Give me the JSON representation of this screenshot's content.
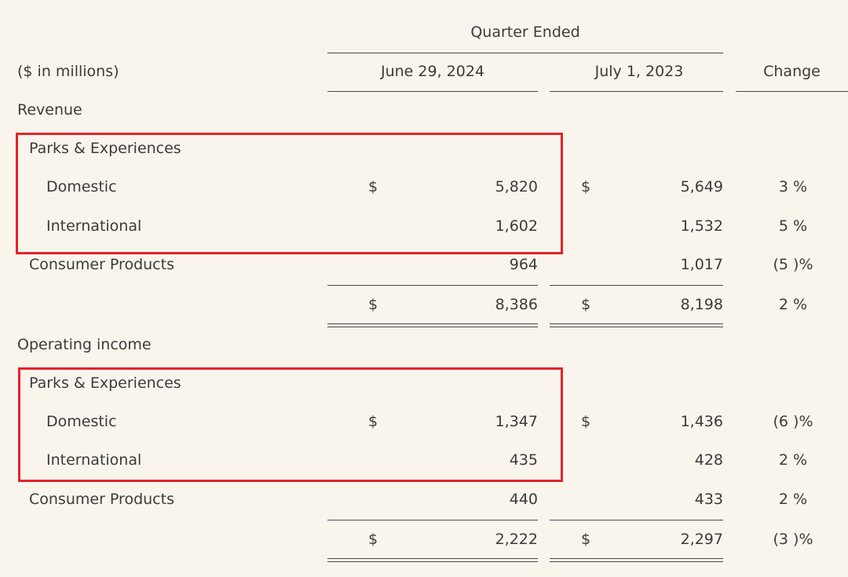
{
  "header": {
    "period_group": "Quarter Ended",
    "units_label": "($ in millions)",
    "col_current": "June 29, 2024",
    "col_prior": "July 1, 2023",
    "col_change": "Change"
  },
  "currency_symbol": "$",
  "revenue": {
    "heading": "Revenue",
    "parks_label": "Parks & Experiences",
    "rows": [
      {
        "label": "Domestic",
        "current": "5,820",
        "prior": "5,649",
        "change": "3 %"
      },
      {
        "label": "International",
        "current": "1,602",
        "prior": "1,532",
        "change": "5 %"
      },
      {
        "label": "Consumer Products",
        "current": "964",
        "prior": "1,017",
        "change": "(5 )%"
      }
    ],
    "total": {
      "current": "8,386",
      "prior": "8,198",
      "change": "2 %"
    }
  },
  "operating_income": {
    "heading": "Operating income",
    "parks_label": "Parks & Experiences",
    "rows": [
      {
        "label": "Domestic",
        "current": "1,347",
        "prior": "1,436",
        "change": "(6 )%"
      },
      {
        "label": "International",
        "current": "435",
        "prior": "428",
        "change": "2 %"
      },
      {
        "label": "Consumer Products",
        "current": "440",
        "prior": "433",
        "change": "2 %"
      }
    ],
    "total": {
      "current": "2,222",
      "prior": "2,297",
      "change": "(3 )%"
    }
  },
  "highlight_color": "#e3242b"
}
